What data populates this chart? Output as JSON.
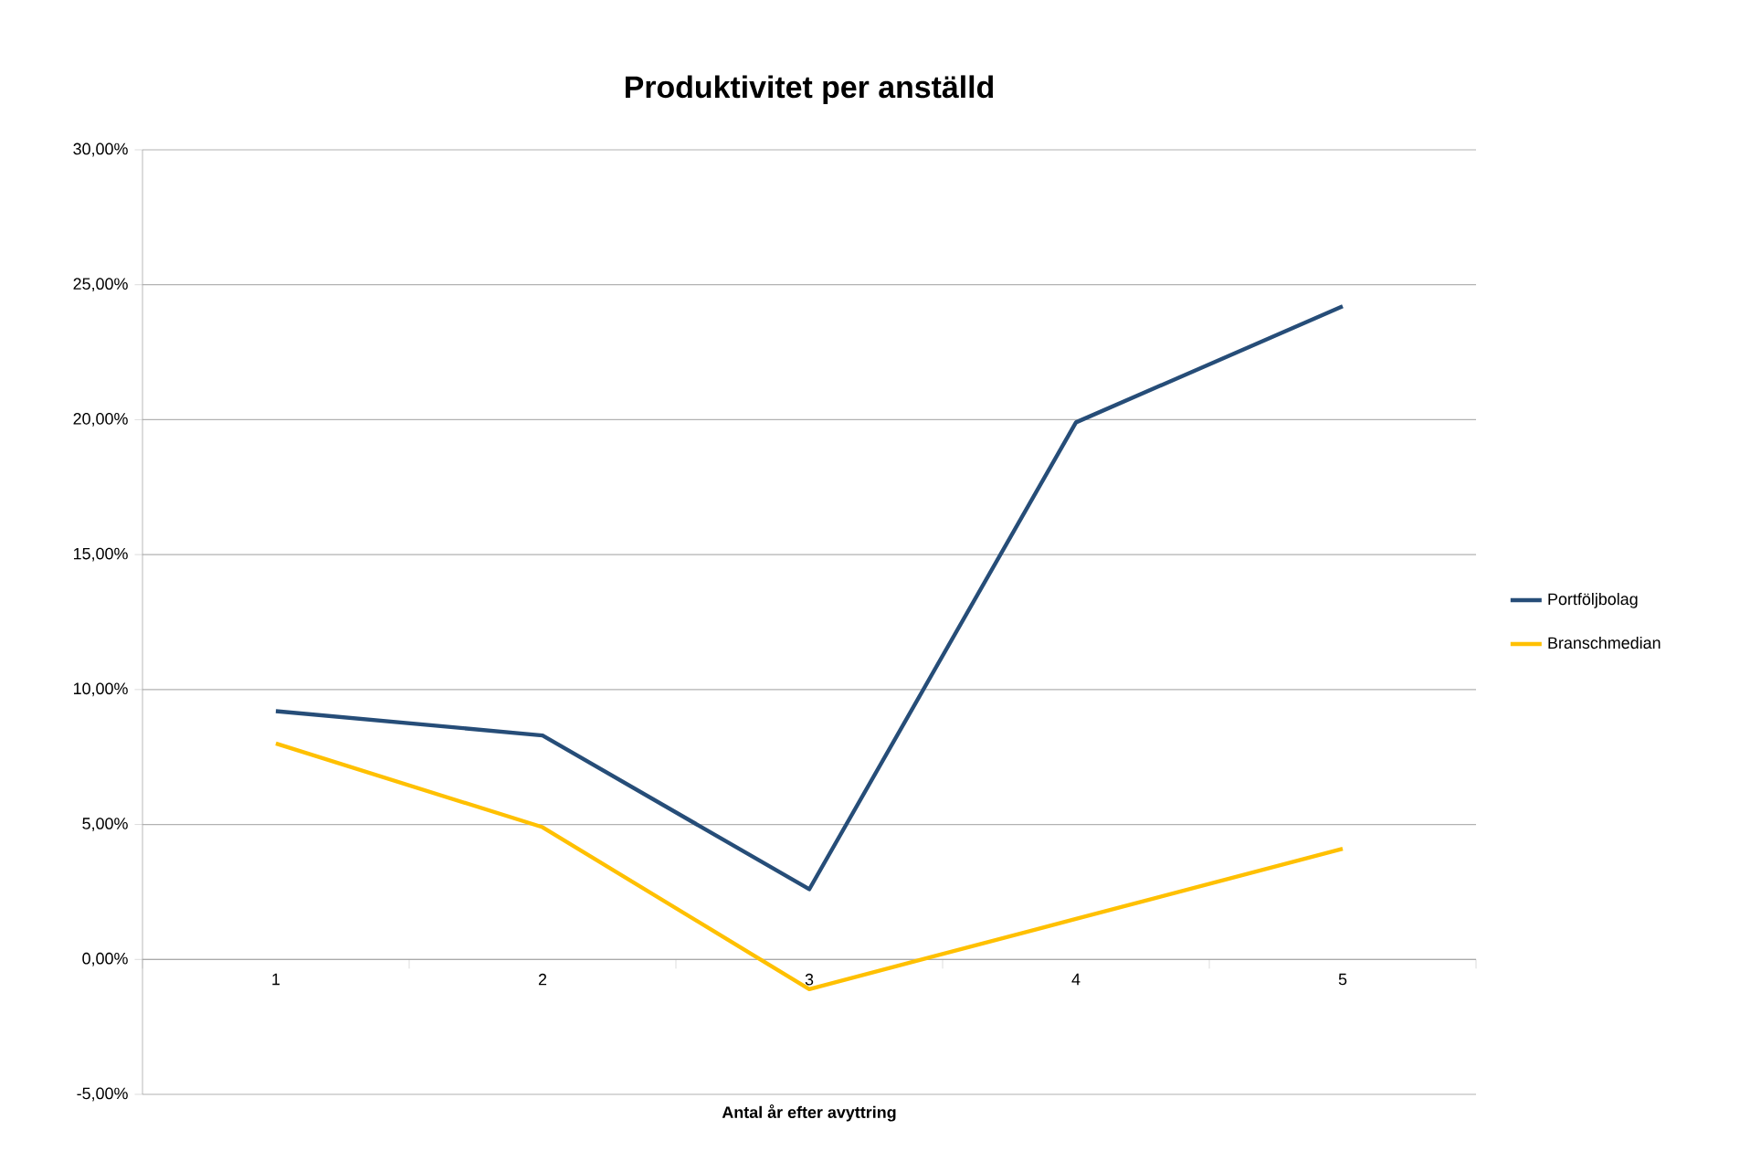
{
  "chart_data": {
    "type": "line",
    "title": "Produktivitet per anställd",
    "xlabel": "Antal år efter avyttring",
    "categories": [
      "1",
      "2",
      "3",
      "4",
      "5"
    ],
    "series": [
      {
        "name": "Portföljbolag",
        "color": "#264d78",
        "values": [
          9.2,
          8.3,
          2.6,
          19.9,
          24.2
        ]
      },
      {
        "name": "Branschmedian",
        "color": "#ffc000",
        "values": [
          8.0,
          4.9,
          -1.1,
          1.5,
          4.1
        ]
      }
    ],
    "ylim": [
      -5,
      30
    ],
    "yticks": [
      {
        "value": -5,
        "label": "-5,00%"
      },
      {
        "value": 0,
        "label": "0,00%"
      },
      {
        "value": 5,
        "label": "5,00%"
      },
      {
        "value": 10,
        "label": "10,00%"
      },
      {
        "value": 15,
        "label": "15,00%"
      },
      {
        "value": 20,
        "label": "20,00%"
      },
      {
        "value": 25,
        "label": "25,00%"
      },
      {
        "value": 30,
        "label": "30,00%"
      }
    ],
    "grid": "y",
    "legend": "right",
    "marker": "none",
    "line_style": "solid"
  }
}
